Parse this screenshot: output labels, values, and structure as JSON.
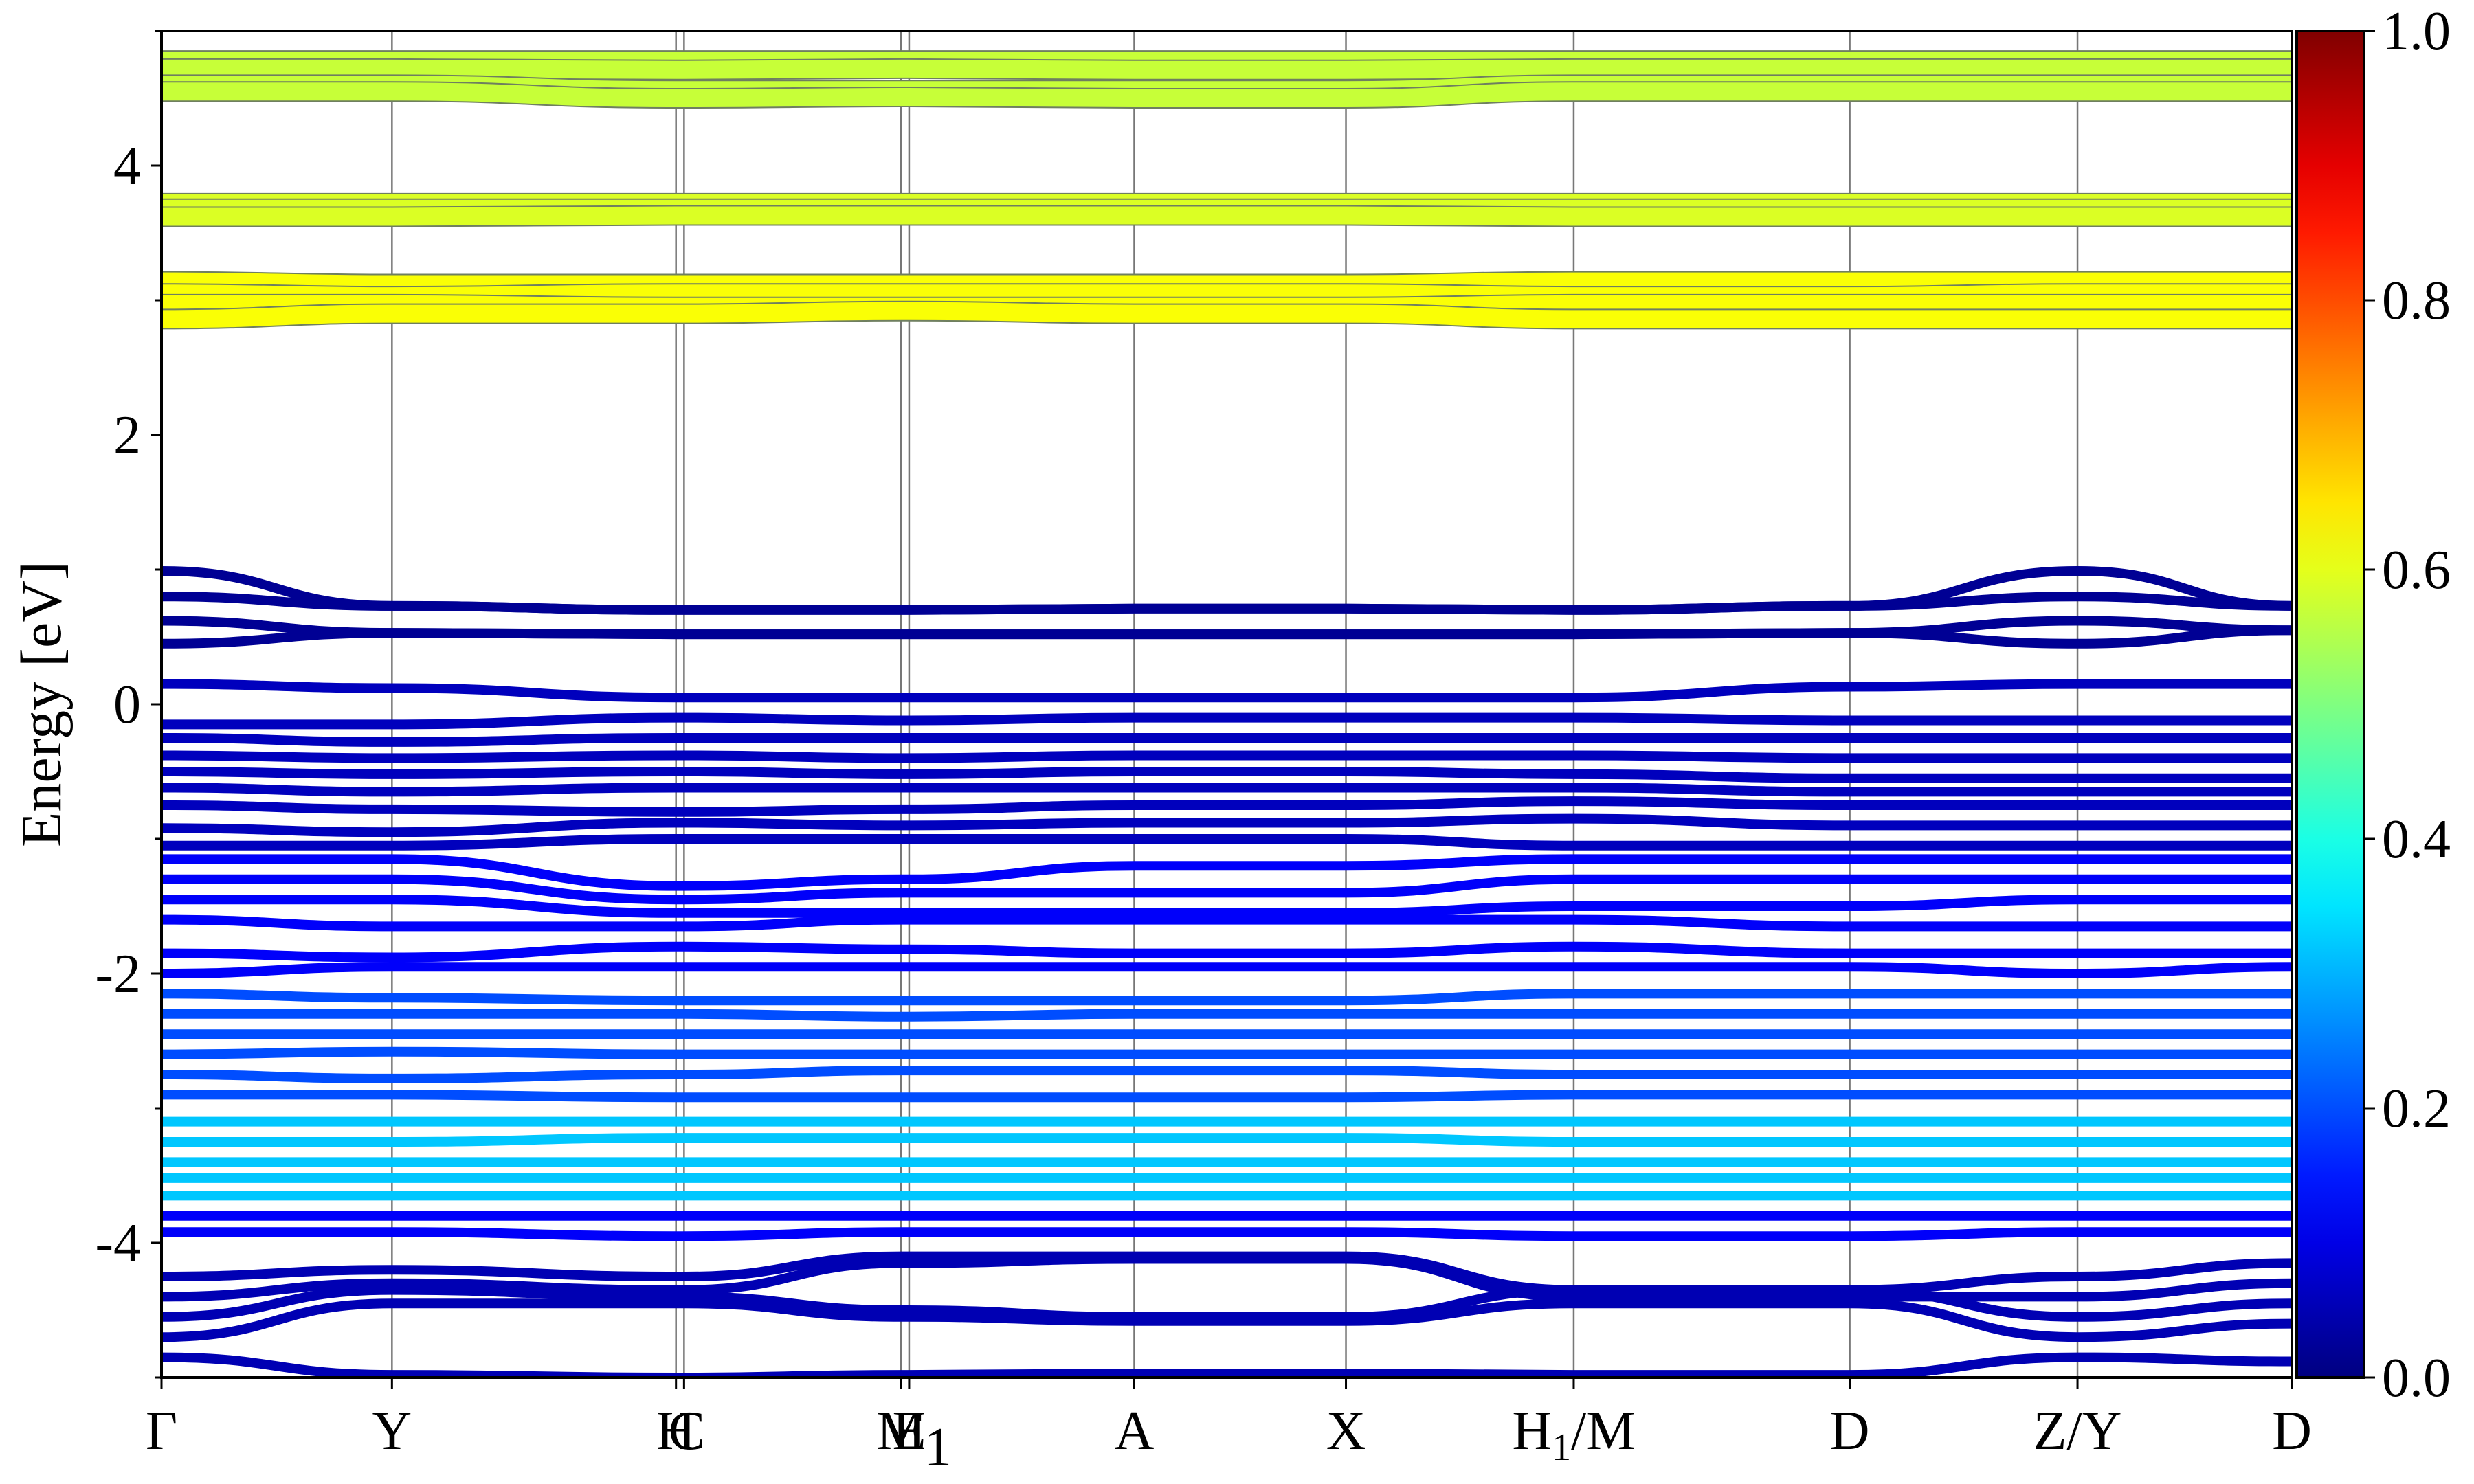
{
  "chart_data": {
    "type": "line",
    "ylabel": "Energy [eV]",
    "ylim": [
      -5,
      5
    ],
    "yticks_major": [
      -4,
      -2,
      0,
      2,
      4
    ],
    "yticks_labels": [
      "-4",
      "-2",
      "0",
      "2",
      "4"
    ],
    "xlim": [
      0,
      7.95
    ],
    "kpoints": [
      {
        "label": "Γ",
        "pos": 0.0
      },
      {
        "label": "Y",
        "pos": 0.86
      },
      {
        "label": "H",
        "pos": 1.92
      },
      {
        "label": "C",
        "pos": 1.95
      },
      {
        "label": "E",
        "pos": 2.76
      },
      {
        "label": "M1",
        "pos": 2.79
      },
      {
        "label": "A",
        "pos": 3.63
      },
      {
        "label": "X",
        "pos": 4.42
      },
      {
        "label": "H1/M",
        "pos": 5.27
      },
      {
        "label": "D",
        "pos": 6.3
      },
      {
        "label": "Z/Y",
        "pos": 7.15
      },
      {
        "label": "D",
        "pos": 7.95
      }
    ],
    "kpoint_labels_display": [
      {
        "text": "Γ",
        "pos": 0.0
      },
      {
        "text": "Y",
        "pos": 0.86
      },
      {
        "text": "H",
        "pos": 1.92
      },
      {
        "text": "C",
        "pos": 1.96
      },
      {
        "text": "M",
        "pos": 2.76
      },
      {
        "text": "E",
        "pos": 2.79
      },
      {
        "text": "1",
        "pos": 2.79,
        "sub": true
      },
      {
        "text": "A",
        "pos": 3.63
      },
      {
        "text": "X",
        "pos": 4.42
      },
      {
        "text": "H",
        "pos": 5.27,
        "sub_text": "1",
        "suffix": "/M"
      },
      {
        "text": "D",
        "pos": 6.3
      },
      {
        "text": "Z/Y",
        "pos": 7.15
      },
      {
        "text": "D",
        "pos": 7.95
      }
    ],
    "colorbar": {
      "colormap": "jet",
      "range": [
        0,
        1
      ],
      "ticks": [
        0.0,
        0.2,
        0.4,
        0.6,
        0.8,
        1.0
      ],
      "tick_labels": [
        "0.0",
        "0.2",
        "0.4",
        "0.6",
        "0.8",
        "1.0"
      ]
    },
    "band_groups": [
      {
        "name": "conduction-upper",
        "weight": 0.57,
        "bands": [
          [
            4.78,
            4.78,
            4.78,
            4.78,
            4.78,
            4.78,
            4.78,
            4.78,
            4.78,
            4.78,
            4.78,
            4.78
          ],
          [
            4.72,
            4.72,
            4.71,
            4.71,
            4.72,
            4.72,
            4.71,
            4.71,
            4.72,
            4.72,
            4.72,
            4.72
          ],
          [
            4.6,
            4.6,
            4.56,
            4.56,
            4.56,
            4.56,
            4.56,
            4.56,
            4.6,
            4.6,
            4.6,
            4.6
          ],
          [
            4.55,
            4.55,
            4.5,
            4.5,
            4.51,
            4.51,
            4.5,
            4.5,
            4.55,
            4.55,
            4.55,
            4.55
          ]
        ]
      },
      {
        "name": "conduction-middle",
        "weight": 0.59,
        "bands": [
          [
            3.72,
            3.72,
            3.72,
            3.72,
            3.72,
            3.72,
            3.72,
            3.72,
            3.72,
            3.72,
            3.72,
            3.72
          ],
          [
            3.68,
            3.68,
            3.68,
            3.68,
            3.68,
            3.68,
            3.68,
            3.68,
            3.68,
            3.68,
            3.68,
            3.68
          ],
          [
            3.62,
            3.62,
            3.63,
            3.63,
            3.63,
            3.63,
            3.63,
            3.63,
            3.62,
            3.62,
            3.62,
            3.62
          ]
        ]
      },
      {
        "name": "conduction-lower",
        "weight": 0.62,
        "bands": [
          [
            3.14,
            3.12,
            3.12,
            3.12,
            3.12,
            3.12,
            3.12,
            3.12,
            3.14,
            3.14,
            3.14,
            3.14
          ],
          [
            3.05,
            3.03,
            3.05,
            3.05,
            3.05,
            3.05,
            3.05,
            3.05,
            3.03,
            3.03,
            3.05,
            3.05
          ],
          [
            2.97,
            2.97,
            2.95,
            2.95,
            2.95,
            2.95,
            2.95,
            2.95,
            2.97,
            2.97,
            2.97,
            2.97
          ],
          [
            2.86,
            2.9,
            2.9,
            2.9,
            2.92,
            2.92,
            2.9,
            2.9,
            2.86,
            2.86,
            2.86,
            2.86
          ]
        ]
      },
      {
        "name": "valence-top",
        "weight": 0.02,
        "bands": [
          [
            0.99,
            0.73,
            0.7,
            0.7,
            0.7,
            0.7,
            0.71,
            0.71,
            0.7,
            0.73,
            0.99,
            0.73
          ],
          [
            0.8,
            0.73,
            0.7,
            0.7,
            0.7,
            0.7,
            0.71,
            0.71,
            0.7,
            0.73,
            0.8,
            0.73
          ],
          [
            0.62,
            0.53,
            0.52,
            0.52,
            0.52,
            0.52,
            0.52,
            0.52,
            0.52,
            0.53,
            0.62,
            0.55
          ],
          [
            0.45,
            0.53,
            0.52,
            0.52,
            0.52,
            0.52,
            0.52,
            0.52,
            0.52,
            0.53,
            0.45,
            0.55
          ]
        ]
      },
      {
        "name": "valence-near-fermi",
        "weight": 0.06,
        "bands": [
          [
            0.15,
            0.12,
            0.05,
            0.05,
            0.05,
            0.05,
            0.05,
            0.05,
            0.05,
            0.13,
            0.15,
            0.15
          ],
          [
            -0.15,
            -0.15,
            -0.1,
            -0.1,
            -0.12,
            -0.12,
            -0.1,
            -0.1,
            -0.1,
            -0.12,
            -0.12,
            -0.12
          ],
          [
            -0.25,
            -0.28,
            -0.25,
            -0.25,
            -0.25,
            -0.25,
            -0.25,
            -0.25,
            -0.25,
            -0.25,
            -0.25,
            -0.25
          ],
          [
            -0.38,
            -0.4,
            -0.38,
            -0.38,
            -0.4,
            -0.4,
            -0.38,
            -0.38,
            -0.38,
            -0.4,
            -0.4,
            -0.4
          ],
          [
            -0.5,
            -0.52,
            -0.5,
            -0.5,
            -0.52,
            -0.52,
            -0.5,
            -0.5,
            -0.52,
            -0.55,
            -0.55,
            -0.55
          ],
          [
            -0.62,
            -0.65,
            -0.62,
            -0.62,
            -0.62,
            -0.62,
            -0.62,
            -0.62,
            -0.62,
            -0.65,
            -0.65,
            -0.65
          ],
          [
            -0.75,
            -0.78,
            -0.8,
            -0.8,
            -0.78,
            -0.78,
            -0.75,
            -0.75,
            -0.72,
            -0.75,
            -0.75,
            -0.75
          ],
          [
            -0.92,
            -0.95,
            -0.88,
            -0.88,
            -0.9,
            -0.9,
            -0.88,
            -0.88,
            -0.85,
            -0.9,
            -0.9,
            -0.9
          ],
          [
            -1.05,
            -1.05,
            -1.0,
            -1.0,
            -1.0,
            -1.0,
            -1.0,
            -1.0,
            -1.05,
            -1.05,
            -1.05,
            -1.05
          ]
        ]
      },
      {
        "name": "valence-mid",
        "weight": 0.12,
        "bands": [
          [
            -1.15,
            -1.15,
            -1.35,
            -1.35,
            -1.3,
            -1.3,
            -1.2,
            -1.2,
            -1.15,
            -1.15,
            -1.15,
            -1.15
          ],
          [
            -1.3,
            -1.3,
            -1.45,
            -1.45,
            -1.4,
            -1.4,
            -1.4,
            -1.4,
            -1.3,
            -1.3,
            -1.3,
            -1.3
          ],
          [
            -1.45,
            -1.45,
            -1.55,
            -1.55,
            -1.55,
            -1.55,
            -1.55,
            -1.55,
            -1.5,
            -1.5,
            -1.45,
            -1.45
          ],
          [
            -1.6,
            -1.65,
            -1.65,
            -1.65,
            -1.6,
            -1.6,
            -1.6,
            -1.6,
            -1.6,
            -1.65,
            -1.65,
            -1.65
          ],
          [
            -1.85,
            -1.88,
            -1.8,
            -1.8,
            -1.82,
            -1.82,
            -1.85,
            -1.85,
            -1.8,
            -1.85,
            -1.85,
            -1.85
          ],
          [
            -2.0,
            -1.95,
            -1.95,
            -1.95,
            -1.95,
            -1.95,
            -1.95,
            -1.95,
            -1.95,
            -1.95,
            -2.0,
            -1.95
          ]
        ]
      },
      {
        "name": "valence-deep",
        "weight": 0.2,
        "bands": [
          [
            -2.15,
            -2.18,
            -2.2,
            -2.2,
            -2.2,
            -2.2,
            -2.2,
            -2.2,
            -2.15,
            -2.15,
            -2.15,
            -2.15
          ],
          [
            -2.3,
            -2.3,
            -2.3,
            -2.3,
            -2.32,
            -2.32,
            -2.3,
            -2.3,
            -2.3,
            -2.3,
            -2.3,
            -2.3
          ],
          [
            -2.45,
            -2.45,
            -2.45,
            -2.45,
            -2.45,
            -2.45,
            -2.45,
            -2.45,
            -2.45,
            -2.45,
            -2.45,
            -2.45
          ],
          [
            -2.6,
            -2.58,
            -2.6,
            -2.6,
            -2.6,
            -2.6,
            -2.6,
            -2.6,
            -2.6,
            -2.6,
            -2.6,
            -2.6
          ],
          [
            -2.75,
            -2.78,
            -2.75,
            -2.75,
            -2.72,
            -2.72,
            -2.72,
            -2.72,
            -2.75,
            -2.75,
            -2.75,
            -2.75
          ],
          [
            -2.9,
            -2.9,
            -2.92,
            -2.92,
            -2.92,
            -2.92,
            -2.92,
            -2.92,
            -2.9,
            -2.9,
            -2.9,
            -2.9
          ]
        ]
      },
      {
        "name": "valence-cyan",
        "weight": 0.32,
        "bands": [
          [
            -3.1,
            -3.1,
            -3.1,
            -3.1,
            -3.1,
            -3.1,
            -3.1,
            -3.1,
            -3.1,
            -3.1,
            -3.1,
            -3.1
          ],
          [
            -3.25,
            -3.25,
            -3.22,
            -3.22,
            -3.22,
            -3.22,
            -3.22,
            -3.22,
            -3.25,
            -3.25,
            -3.25,
            -3.25
          ],
          [
            -3.4,
            -3.4,
            -3.4,
            -3.4,
            -3.4,
            -3.4,
            -3.4,
            -3.4,
            -3.4,
            -3.4,
            -3.4,
            -3.4
          ],
          [
            -3.52,
            -3.52,
            -3.52,
            -3.52,
            -3.52,
            -3.52,
            -3.52,
            -3.52,
            -3.52,
            -3.52,
            -3.52,
            -3.52
          ],
          [
            -3.65,
            -3.65,
            -3.65,
            -3.65,
            -3.65,
            -3.65,
            -3.65,
            -3.65,
            -3.65,
            -3.65,
            -3.65,
            -3.65
          ]
        ]
      },
      {
        "name": "valence-lower",
        "weight": 0.12,
        "bands": [
          [
            -3.8,
            -3.8,
            -3.8,
            -3.8,
            -3.8,
            -3.8,
            -3.8,
            -3.8,
            -3.8,
            -3.8,
            -3.8,
            -3.8
          ],
          [
            -3.92,
            -3.92,
            -3.95,
            -3.95,
            -3.92,
            -3.92,
            -3.92,
            -3.92,
            -3.95,
            -3.95,
            -3.92,
            -3.92
          ]
        ]
      },
      {
        "name": "valence-bottom",
        "weight": 0.05,
        "bands": [
          [
            -4.25,
            -4.2,
            -4.25,
            -4.25,
            -4.1,
            -4.1,
            -4.1,
            -4.1,
            -4.35,
            -4.35,
            -4.25,
            -4.15
          ],
          [
            -4.4,
            -4.3,
            -4.35,
            -4.35,
            -4.15,
            -4.15,
            -4.12,
            -4.12,
            -4.4,
            -4.4,
            -4.4,
            -4.3
          ],
          [
            -4.55,
            -4.35,
            -4.4,
            -4.4,
            -4.5,
            -4.5,
            -4.55,
            -4.55,
            -4.35,
            -4.35,
            -4.55,
            -4.45
          ],
          [
            -4.7,
            -4.45,
            -4.45,
            -4.45,
            -4.55,
            -4.55,
            -4.58,
            -4.58,
            -4.45,
            -4.45,
            -4.7,
            -4.6
          ],
          [
            -4.85,
            -4.98,
            -5.0,
            -5.0,
            -4.98,
            -4.98,
            -4.97,
            -4.97,
            -4.98,
            -4.98,
            -4.85,
            -4.88
          ]
        ]
      }
    ]
  }
}
